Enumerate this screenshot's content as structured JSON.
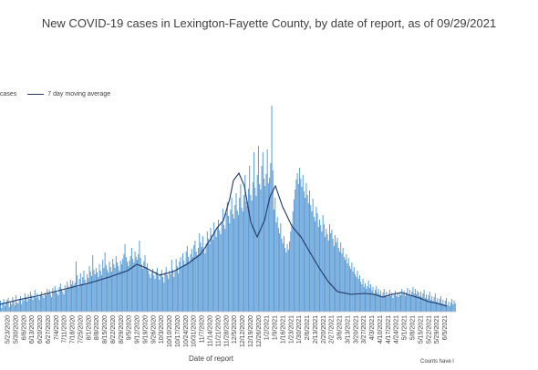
{
  "chart_data": {
    "type": "bar",
    "title": "New COVID-19 cases in Lexington-Fayette County, by date of report, as of 09/29/2021",
    "xlabel": "Date of report",
    "ylabel": "",
    "footnote": "Counts have l",
    "legend": {
      "placement": "top-left",
      "entries": [
        "cases",
        "7 day moving average"
      ]
    },
    "colors": {
      "bars": "#5b9bd5",
      "line": "#1f3864"
    },
    "grid": false,
    "ylim": [
      0,
      230
    ],
    "x_range": [
      "2020-05-16",
      "2021-06-13"
    ],
    "tick_labels": [
      "5/23/2020",
      "5/30/2020",
      "6/6/2020",
      "6/13/2020",
      "6/20/2020",
      "6/27/2020",
      "7/4/2020",
      "7/11/2020",
      "7/18/2020",
      "7/25/2020",
      "8/1/2020",
      "8/8/2020",
      "8/15/2020",
      "8/22/2020",
      "8/29/2020",
      "9/5/2020",
      "9/12/2020",
      "9/19/2020",
      "9/26/2020",
      "10/3/2020",
      "10/10/2020",
      "10/17/2020",
      "10/24/2020",
      "10/31/2020",
      "11/7/2020",
      "11/14/2020",
      "11/21/2020",
      "11/28/2020",
      "12/5/2020",
      "12/12/2020",
      "12/19/2020",
      "12/26/2020",
      "1/2/2021",
      "1/9/2021",
      "1/16/2021",
      "1/23/2021",
      "1/30/2021",
      "2/6/2021",
      "2/13/2021",
      "2/20/2021",
      "2/27/2021",
      "3/6/2021",
      "3/13/2021",
      "3/20/2021",
      "3/27/2021",
      "4/3/2021",
      "4/10/2021",
      "4/17/2021",
      "4/24/2021",
      "5/1/2021",
      "5/8/2021",
      "5/15/2021",
      "5/22/2021",
      "5/29/2021",
      "6/5/2021"
    ],
    "series": [
      {
        "name": "cases",
        "kind": "bar",
        "values": [
          12,
          4,
          10,
          14,
          6,
          9,
          13,
          15,
          5,
          11,
          8,
          16,
          12,
          7,
          18,
          10,
          9,
          14,
          17,
          8,
          15,
          12,
          20,
          16,
          11,
          19,
          14,
          22,
          18,
          13,
          17,
          24,
          15,
          20,
          16,
          13,
          19,
          22,
          17,
          15,
          21,
          18,
          25,
          20,
          24,
          19,
          16,
          26,
          22,
          28,
          23,
          20,
          18,
          27,
          31,
          25,
          22,
          19,
          29,
          24,
          33,
          28,
          26,
          35,
          30,
          34,
          29,
          32,
          55,
          40,
          27,
          36,
          42,
          31,
          38,
          45,
          35,
          30,
          41,
          37,
          50,
          44,
          39,
          62,
          46,
          41,
          48,
          43,
          38,
          52,
          45,
          40,
          57,
          48,
          65,
          51,
          46,
          43,
          55,
          49,
          44,
          58,
          52,
          48,
          61,
          54,
          50,
          45,
          56,
          52,
          58,
          63,
          74,
          60,
          55,
          50,
          56,
          61,
          70,
          58,
          54,
          66,
          60,
          57,
          63,
          78,
          59,
          52,
          47,
          55,
          62,
          49,
          53,
          45,
          41,
          37,
          43,
          47,
          40,
          36,
          44,
          48,
          39,
          35,
          42,
          46,
          38,
          32,
          43,
          49,
          40,
          36,
          45,
          41,
          57,
          46,
          38,
          44,
          58,
          50,
          42,
          55,
          60,
          48,
          64,
          56,
          52,
          66,
          72,
          60,
          54,
          63,
          69,
          60,
          73,
          78,
          66,
          62,
          70,
          86,
          76,
          71,
          83,
          69,
          64,
          75,
          88,
          80,
          74,
          92,
          84,
          79,
          98,
          88,
          82,
          93,
          101,
          89,
          85,
          99,
          113,
          95,
          91,
          108,
          120,
          105,
          97,
          112,
          125,
          107,
          102,
          117,
          130,
          111,
          106,
          125,
          140,
          114,
          110,
          128,
          150,
          121,
          116,
          135,
          160,
          128,
          122,
          142,
          175,
          136,
          127,
          150,
          182,
          140,
          134,
          160,
          175,
          146,
          138,
          151,
          178,
          141,
          147,
          163,
          226,
          155,
          112,
          125,
          98,
          104,
          92,
          86,
          97,
          80,
          75,
          83,
          70,
          65,
          74,
          68,
          77,
          88,
          96,
          110,
          123,
          134,
          145,
          152,
          140,
          158,
          146,
          137,
          150,
          132,
          125,
          141,
          128,
          119,
          133,
          117,
          110,
          124,
          104,
          99,
          115,
          108,
          93,
          101,
          95,
          88,
          106,
          96,
          82,
          91,
          85,
          78,
          96,
          86,
          90,
          80,
          72,
          84,
          76,
          81,
          70,
          66,
          76,
          64,
          70,
          60,
          57,
          63,
          53,
          59,
          50,
          47,
          54,
          44,
          49,
          41,
          38,
          45,
          36,
          40,
          33,
          30,
          36,
          27,
          31,
          25,
          28,
          34,
          26,
          30,
          23,
          27,
          20,
          24,
          28,
          21,
          25,
          19,
          23,
          17,
          21,
          25,
          18,
          22,
          16,
          20,
          24,
          17,
          21,
          15,
          19,
          23,
          17,
          21,
          16,
          20,
          18,
          25,
          19,
          23,
          17,
          21,
          26,
          19,
          24,
          18,
          22,
          27,
          20,
          25,
          19,
          23,
          21,
          17,
          22,
          16,
          20,
          24,
          15,
          19,
          14,
          18,
          22,
          13,
          17,
          12,
          16,
          20,
          11,
          15,
          10,
          14,
          17,
          9,
          13,
          8,
          12,
          15,
          7,
          11,
          6,
          10,
          14,
          8,
          12,
          9
        ]
      },
      {
        "name": "7 day moving average",
        "kind": "line",
        "points": [
          [
            0,
            8
          ],
          [
            20,
            13
          ],
          [
            40,
            17
          ],
          [
            60,
            22
          ],
          [
            80,
            27
          ],
          [
            100,
            32
          ],
          [
            120,
            38
          ],
          [
            140,
            45
          ],
          [
            150,
            52
          ],
          [
            160,
            48
          ],
          [
            175,
            40
          ],
          [
            190,
            44
          ],
          [
            205,
            52
          ],
          [
            220,
            63
          ],
          [
            230,
            78
          ],
          [
            238,
            92
          ],
          [
            245,
            100
          ],
          [
            252,
            124
          ],
          [
            256,
            144
          ],
          [
            262,
            152
          ],
          [
            268,
            138
          ],
          [
            275,
            98
          ],
          [
            282,
            82
          ],
          [
            290,
            100
          ],
          [
            296,
            126
          ],
          [
            302,
            138
          ],
          [
            310,
            115
          ],
          [
            320,
            94
          ],
          [
            330,
            82
          ],
          [
            340,
            65
          ],
          [
            350,
            48
          ],
          [
            360,
            33
          ],
          [
            370,
            22
          ],
          [
            385,
            19
          ],
          [
            400,
            20
          ],
          [
            410,
            19
          ],
          [
            420,
            16
          ],
          [
            430,
            19
          ],
          [
            440,
            21
          ],
          [
            450,
            18
          ],
          [
            460,
            15
          ],
          [
            470,
            11
          ],
          [
            480,
            9
          ],
          [
            490,
            6
          ]
        ]
      }
    ]
  }
}
